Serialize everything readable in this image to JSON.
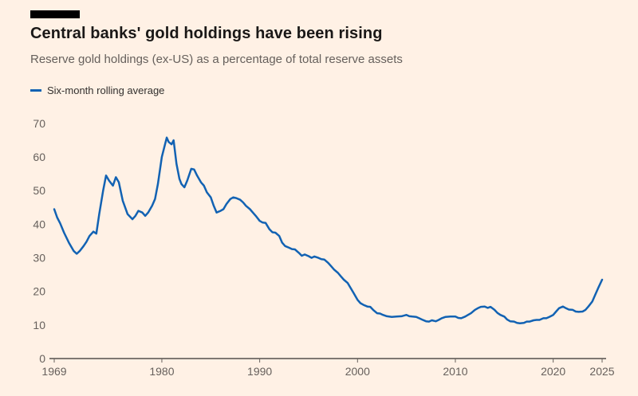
{
  "header": {
    "title": "Central banks' gold holdings have been rising",
    "subtitle": "Reserve gold holdings (ex-US) as a percentage of total reserve assets"
  },
  "legend": {
    "label": "Six-month rolling average"
  },
  "colors": {
    "background": "#FFF1E5",
    "line": "#1262b3",
    "axis": "#33302e",
    "tick": "#66605C",
    "text_muted": "#66605C",
    "title": "#1a1817",
    "brand_bar": "#000000"
  },
  "chart_data": {
    "type": "line",
    "title": "Central banks' gold holdings have been rising",
    "subtitle": "Reserve gold holdings (ex-US) as a percentage of total reserve assets",
    "xlabel": "",
    "ylabel": "",
    "xlim": [
      1969,
      2025
    ],
    "ylim": [
      0,
      70
    ],
    "x_ticks": [
      1969,
      1980,
      1990,
      2000,
      2010,
      2020,
      2025
    ],
    "y_ticks": [
      0,
      10,
      20,
      30,
      40,
      50,
      60,
      70
    ],
    "grid": false,
    "legend_position": "top-left",
    "series": [
      {
        "name": "Six-month rolling average",
        "points": [
          [
            1969,
            44.5
          ],
          [
            1969.3,
            42
          ],
          [
            1969.6,
            40.3
          ],
          [
            1970,
            37.5
          ],
          [
            1970.5,
            34.5
          ],
          [
            1971,
            32
          ],
          [
            1971.3,
            31.2
          ],
          [
            1971.6,
            32
          ],
          [
            1972,
            33.5
          ],
          [
            1972.3,
            34.8
          ],
          [
            1972.6,
            36.5
          ],
          [
            1973,
            37.8
          ],
          [
            1973.3,
            37.2
          ],
          [
            1973.6,
            43
          ],
          [
            1974,
            50
          ],
          [
            1974.3,
            54.5
          ],
          [
            1974.6,
            53
          ],
          [
            1975,
            51.5
          ],
          [
            1975.3,
            54
          ],
          [
            1975.6,
            52.5
          ],
          [
            1976,
            47
          ],
          [
            1976.5,
            43
          ],
          [
            1977,
            41.5
          ],
          [
            1977.3,
            42.5
          ],
          [
            1977.6,
            44
          ],
          [
            1978,
            43.5
          ],
          [
            1978.3,
            42.5
          ],
          [
            1978.6,
            43.5
          ],
          [
            1979,
            45.5
          ],
          [
            1979.3,
            47.5
          ],
          [
            1979.6,
            52
          ],
          [
            1980,
            60
          ],
          [
            1980.3,
            63.5
          ],
          [
            1980.5,
            65.8
          ],
          [
            1980.7,
            64.5
          ],
          [
            1981,
            63.8
          ],
          [
            1981.2,
            65
          ],
          [
            1981.5,
            58
          ],
          [
            1981.8,
            53.5
          ],
          [
            1982,
            52
          ],
          [
            1982.3,
            51
          ],
          [
            1982.6,
            53
          ],
          [
            1983,
            56.5
          ],
          [
            1983.3,
            56.3
          ],
          [
            1983.6,
            54.5
          ],
          [
            1984,
            52.5
          ],
          [
            1984.3,
            51.5
          ],
          [
            1984.6,
            49.5
          ],
          [
            1985,
            48
          ],
          [
            1985.3,
            45.5
          ],
          [
            1985.6,
            43.5
          ],
          [
            1986,
            44
          ],
          [
            1986.3,
            44.5
          ],
          [
            1986.6,
            46
          ],
          [
            1987,
            47.5
          ],
          [
            1987.3,
            48
          ],
          [
            1987.6,
            47.8
          ],
          [
            1988,
            47.3
          ],
          [
            1988.3,
            46.5
          ],
          [
            1988.6,
            45.5
          ],
          [
            1989,
            44.5
          ],
          [
            1989.3,
            43.5
          ],
          [
            1989.6,
            42.5
          ],
          [
            1990,
            41
          ],
          [
            1990.3,
            40.5
          ],
          [
            1990.6,
            40.4
          ],
          [
            1991,
            38.5
          ],
          [
            1991.3,
            37.6
          ],
          [
            1991.6,
            37.5
          ],
          [
            1992,
            36.5
          ],
          [
            1992.3,
            34.5
          ],
          [
            1992.6,
            33.5
          ],
          [
            1993,
            33
          ],
          [
            1993.3,
            32.6
          ],
          [
            1993.6,
            32.5
          ],
          [
            1994,
            31.5
          ],
          [
            1994.3,
            30.6
          ],
          [
            1994.6,
            31
          ],
          [
            1995,
            30.5
          ],
          [
            1995.3,
            30
          ],
          [
            1995.6,
            30.4
          ],
          [
            1996,
            30
          ],
          [
            1996.3,
            29.6
          ],
          [
            1996.6,
            29.5
          ],
          [
            1997,
            28.5
          ],
          [
            1997.3,
            27.5
          ],
          [
            1997.6,
            26.5
          ],
          [
            1998,
            25.5
          ],
          [
            1998.3,
            24.5
          ],
          [
            1998.6,
            23.5
          ],
          [
            1999,
            22.5
          ],
          [
            1999.3,
            21
          ],
          [
            1999.6,
            19.5
          ],
          [
            2000,
            17.5
          ],
          [
            2000.3,
            16.5
          ],
          [
            2000.6,
            16
          ],
          [
            2001,
            15.5
          ],
          [
            2001.3,
            15.4
          ],
          [
            2001.6,
            14.5
          ],
          [
            2002,
            13.5
          ],
          [
            2002.3,
            13.4
          ],
          [
            2002.6,
            13
          ],
          [
            2003,
            12.6
          ],
          [
            2003.5,
            12.4
          ],
          [
            2004,
            12.5
          ],
          [
            2004.5,
            12.6
          ],
          [
            2005,
            13
          ],
          [
            2005.3,
            12.6
          ],
          [
            2005.6,
            12.5
          ],
          [
            2006,
            12.4
          ],
          [
            2006.3,
            12
          ],
          [
            2006.6,
            11.6
          ],
          [
            2007,
            11.1
          ],
          [
            2007.3,
            11
          ],
          [
            2007.6,
            11.4
          ],
          [
            2008,
            11.1
          ],
          [
            2008.3,
            11.5
          ],
          [
            2008.6,
            12
          ],
          [
            2009,
            12.4
          ],
          [
            2009.5,
            12.5
          ],
          [
            2010,
            12.5
          ],
          [
            2010.3,
            12.1
          ],
          [
            2010.6,
            12
          ],
          [
            2011,
            12.5
          ],
          [
            2011.3,
            13
          ],
          [
            2011.6,
            13.5
          ],
          [
            2012,
            14.5
          ],
          [
            2012.3,
            15
          ],
          [
            2012.6,
            15.4
          ],
          [
            2013,
            15.5
          ],
          [
            2013.3,
            15.1
          ],
          [
            2013.6,
            15.4
          ],
          [
            2014,
            14.5
          ],
          [
            2014.3,
            13.6
          ],
          [
            2014.6,
            13
          ],
          [
            2015,
            12.5
          ],
          [
            2015.3,
            11.6
          ],
          [
            2015.6,
            11.1
          ],
          [
            2016,
            11
          ],
          [
            2016.3,
            10.6
          ],
          [
            2016.6,
            10.5
          ],
          [
            2017,
            10.6
          ],
          [
            2017.3,
            11
          ],
          [
            2017.6,
            11
          ],
          [
            2018,
            11.4
          ],
          [
            2018.3,
            11.5
          ],
          [
            2018.6,
            11.5
          ],
          [
            2019,
            12
          ],
          [
            2019.3,
            12
          ],
          [
            2019.6,
            12.4
          ],
          [
            2020,
            13
          ],
          [
            2020.3,
            14
          ],
          [
            2020.6,
            15
          ],
          [
            2021,
            15.5
          ],
          [
            2021.3,
            15
          ],
          [
            2021.6,
            14.6
          ],
          [
            2022,
            14.5
          ],
          [
            2022.3,
            14
          ],
          [
            2022.6,
            13.9
          ],
          [
            2023,
            14
          ],
          [
            2023.3,
            14.5
          ],
          [
            2023.6,
            15.5
          ],
          [
            2024,
            17
          ],
          [
            2024.3,
            19
          ],
          [
            2024.6,
            21
          ],
          [
            2025,
            23.5
          ]
        ]
      }
    ]
  }
}
